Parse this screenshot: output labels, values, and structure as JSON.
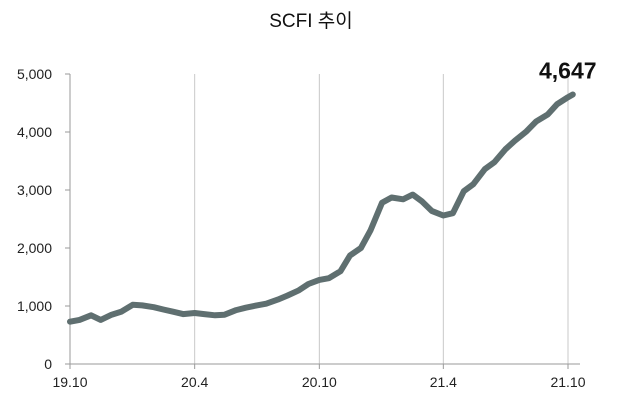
{
  "chart_data": {
    "type": "line",
    "title": "SCFI 추이",
    "xlabel": "",
    "ylabel": "",
    "x_tick_labels": [
      "19.10",
      "20.4",
      "20.10",
      "21.4",
      "21.10"
    ],
    "y_tick_labels": [
      "0",
      "1,000",
      "2,000",
      "3,000",
      "4,000",
      "5,000"
    ],
    "ylim": [
      0,
      5000
    ],
    "grid": "vertical lines only",
    "line_color": "#5f6f70",
    "annotation": "4,647",
    "series": [
      {
        "x": [
          "2019-10-01",
          "2019-10-15",
          "2019-11-01",
          "2019-11-15",
          "2019-12-01",
          "2019-12-15",
          "2020-01-01",
          "2020-01-15",
          "2020-02-01",
          "2020-02-15",
          "2020-03-01",
          "2020-03-15",
          "2020-04-01",
          "2020-04-15",
          "2020-05-01",
          "2020-05-15",
          "2020-06-01",
          "2020-06-15",
          "2020-07-01",
          "2020-07-15",
          "2020-08-01",
          "2020-08-15",
          "2020-09-01",
          "2020-09-15",
          "2020-10-01",
          "2020-10-15",
          "2020-11-01",
          "2020-11-15",
          "2020-12-01",
          "2020-12-15",
          "2021-01-01",
          "2021-01-15",
          "2021-02-01",
          "2021-02-15",
          "2021-03-01",
          "2021-03-15",
          "2021-04-01",
          "2021-04-15",
          "2021-05-01",
          "2021-05-15",
          "2021-06-01",
          "2021-06-15",
          "2021-07-01",
          "2021-07-15",
          "2021-08-01",
          "2021-08-15",
          "2021-09-01",
          "2021-09-15",
          "2021-10-01",
          "2021-10-08"
        ],
        "values": [
          730,
          760,
          840,
          760,
          850,
          900,
          1020,
          1010,
          980,
          940,
          900,
          860,
          880,
          860,
          840,
          850,
          930,
          970,
          1010,
          1040,
          1110,
          1180,
          1270,
          1380,
          1450,
          1480,
          1600,
          1870,
          2000,
          2300,
          2780,
          2870,
          2840,
          2920,
          2800,
          2640,
          2560,
          2600,
          2980,
          3100,
          3360,
          3480,
          3700,
          3850,
          4010,
          4180,
          4300,
          4480,
          4600,
          4647
        ]
      }
    ]
  }
}
